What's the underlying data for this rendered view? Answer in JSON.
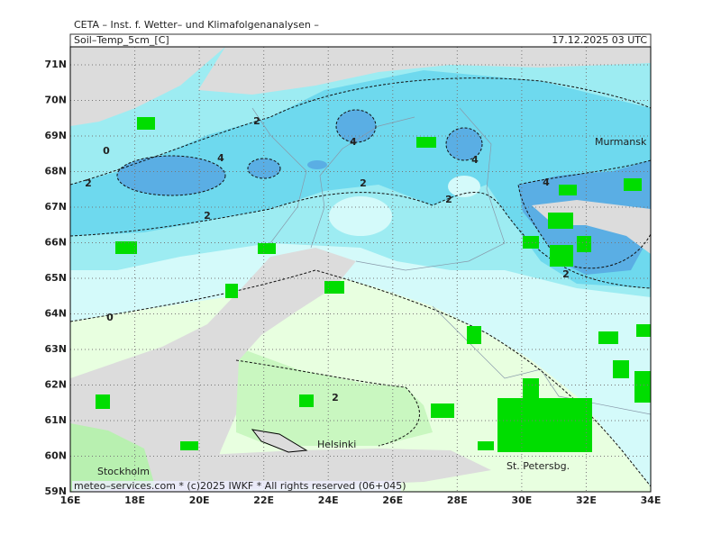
{
  "header": {
    "source": "CETA – Inst. f. Wetter– und Klimafolgenanalysen –",
    "field": "Soil–Temp_5cm_[C]",
    "datetime": "17.12.2025  03 UTC"
  },
  "map": {
    "lon_ticks": [
      "16E",
      "18E",
      "20E",
      "22E",
      "24E",
      "26E",
      "28E",
      "30E",
      "32E",
      "34E"
    ],
    "lat_ticks": [
      "59N",
      "60N",
      "61N",
      "62N",
      "63N",
      "64N",
      "65N",
      "66N",
      "67N",
      "68N",
      "69N",
      "70N",
      "71N"
    ],
    "cities": [
      "Murmansk",
      "Helsinki",
      "Stockholm",
      "St. Petersbg."
    ],
    "contour_labels": [
      "0",
      "2",
      "4",
      "2",
      "4",
      "4",
      "2",
      "2",
      "2",
      "4",
      "2",
      "0",
      "2"
    ],
    "copyright": "meteo–services.com * (c)2025 IWKF * All rights reserved (06+045)"
  }
}
